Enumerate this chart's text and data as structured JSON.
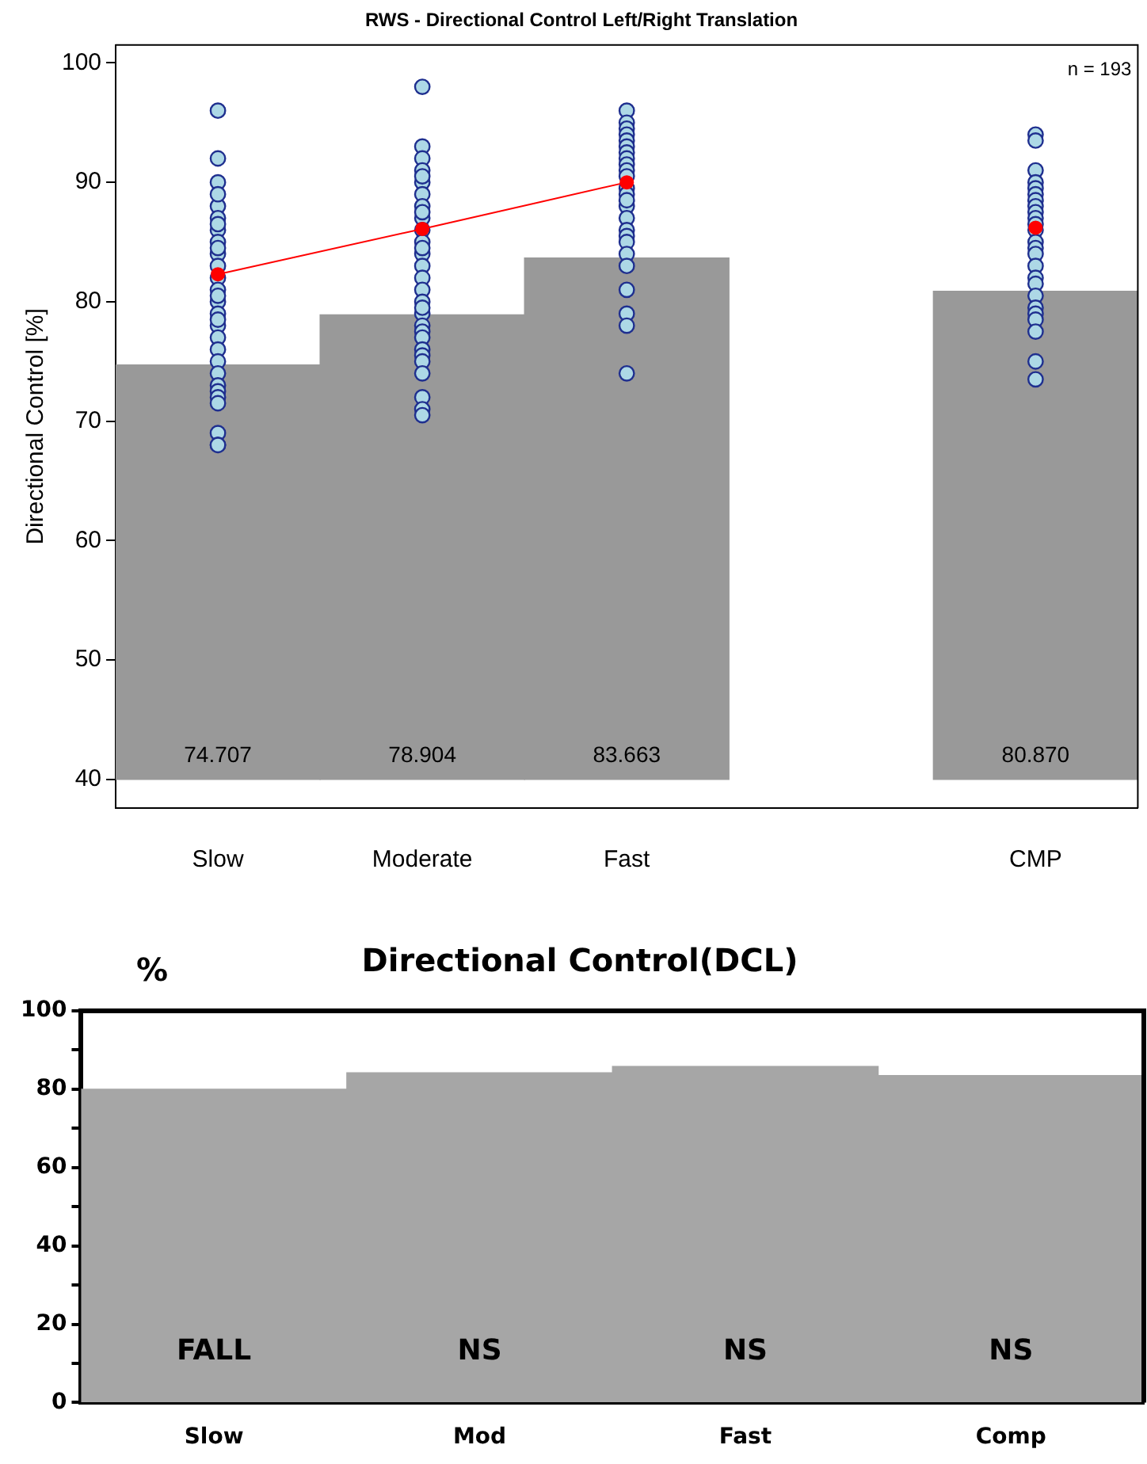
{
  "chart_data": [
    {
      "type": "bar",
      "title": "RWS - Directional Control Left/Right Translation",
      "ylabel": "Directional Control [%]",
      "categories": [
        "Slow",
        "Moderate",
        "Fast",
        null,
        "CMP"
      ],
      "ylim": [
        37.6,
        101.5
      ],
      "yticks": [
        40,
        50,
        60,
        70,
        80,
        90,
        100
      ],
      "grid": false,
      "legend": false,
      "annotations": [
        "n = 193"
      ],
      "series": [
        {
          "color": "#999999",
          "base": [
            40,
            40,
            40,
            null,
            40
          ],
          "values": [
            34.707,
            38.904,
            43.663,
            null,
            40.87
          ],
          "value_labels": [
            "74.707",
            "78.904",
            "83.663",
            null,
            "80.870"
          ]
        },
        {
          "type": "scatter",
          "color": "#add8e6",
          "marker": "circle",
          "x": [
            "Slow",
            "Slow",
            "Slow",
            "Slow",
            "Slow",
            "Slow",
            "Slow",
            "Slow",
            "Slow",
            "Slow",
            "Slow",
            "Slow",
            "Slow",
            "Slow",
            "Slow",
            "Slow",
            "Slow",
            "Slow",
            "Slow",
            "Slow",
            "Slow",
            "Slow",
            "Slow",
            "Slow",
            "Slow",
            "Slow",
            "Slow",
            "Slow",
            "Slow",
            "Slow",
            "Moderate",
            "Moderate",
            "Moderate",
            "Moderate",
            "Moderate",
            "Moderate",
            "Moderate",
            "Moderate",
            "Moderate",
            "Moderate",
            "Moderate",
            "Moderate",
            "Moderate",
            "Moderate",
            "Moderate",
            "Moderate",
            "Moderate",
            "Moderate",
            "Moderate",
            "Moderate",
            "Moderate",
            "Moderate",
            "Moderate",
            "Moderate",
            "Moderate",
            "Moderate",
            "Moderate",
            "Moderate",
            "Moderate",
            "Moderate",
            "Fast",
            "Fast",
            "Fast",
            "Fast",
            "Fast",
            "Fast",
            "Fast",
            "Fast",
            "Fast",
            "Fast",
            "Fast",
            "Fast",
            "Fast",
            "Fast",
            "Fast",
            "Fast",
            "Fast",
            "Fast",
            "Fast",
            "Fast",
            "Fast",
            "Fast",
            "Fast",
            "Fast",
            "Fast",
            "CMP",
            "CMP",
            "CMP",
            "CMP",
            "CMP",
            "CMP",
            "CMP",
            "CMP",
            "CMP",
            "CMP",
            "CMP",
            "CMP",
            "CMP",
            "CMP",
            "CMP",
            "CMP",
            "CMP",
            "CMP",
            "CMP",
            "CMP",
            "CMP",
            "CMP",
            "CMP",
            "CMP",
            "CMP"
          ],
          "values": [
            96,
            92,
            90,
            88,
            87,
            86,
            85,
            84,
            83,
            82,
            81,
            80,
            79,
            78,
            77,
            76,
            75,
            74,
            73,
            72.5,
            72,
            71.5,
            69,
            68,
            68,
            89,
            86.5,
            84.5,
            80.5,
            78.5,
            98,
            93,
            92,
            91,
            90,
            89,
            88,
            87,
            86,
            85,
            84,
            83,
            82,
            81,
            80,
            79,
            78,
            77.5,
            77,
            76,
            75.5,
            75,
            74,
            72,
            71,
            70.5,
            90.5,
            87.5,
            84.5,
            79.5,
            96,
            95,
            94.5,
            94,
            93.5,
            93,
            92.5,
            92,
            91.5,
            91,
            90.5,
            89.5,
            89,
            88,
            87,
            86,
            85.5,
            85,
            84,
            83,
            81,
            79,
            78,
            74,
            88.5,
            94,
            93.5,
            91,
            90,
            89.5,
            89,
            88.5,
            88,
            87.5,
            87,
            86.5,
            86,
            85,
            84.5,
            84,
            83,
            82,
            81.5,
            80.5,
            79.5,
            79,
            78.5,
            77.5,
            75,
            73.5
          ]
        },
        {
          "type": "line",
          "color": "#ff0000",
          "marker": "circle",
          "values": [
            82.3,
            86.1,
            90.0,
            null,
            86.2
          ]
        }
      ]
    },
    {
      "type": "bar",
      "title": "Directional Control(DCL)",
      "ylabel": "%",
      "categories": [
        "Slow",
        "Mod",
        "Fast",
        "Comp"
      ],
      "values": [
        80,
        84.2,
        85.8,
        83.5
      ],
      "color": "#a6a6a6",
      "ylim": [
        0,
        100
      ],
      "yticks": [
        0,
        {
          "value": 10,
          "label": null
        },
        20,
        {
          "value": 30,
          "label": null
        },
        40,
        {
          "value": 50,
          "label": null
        },
        60,
        {
          "value": 70,
          "label": null
        },
        80,
        {
          "value": 90,
          "label": null
        },
        100
      ],
      "grid": false,
      "legend": false,
      "annotations": [
        "FALL",
        "NS",
        "NS",
        "NS"
      ]
    }
  ]
}
